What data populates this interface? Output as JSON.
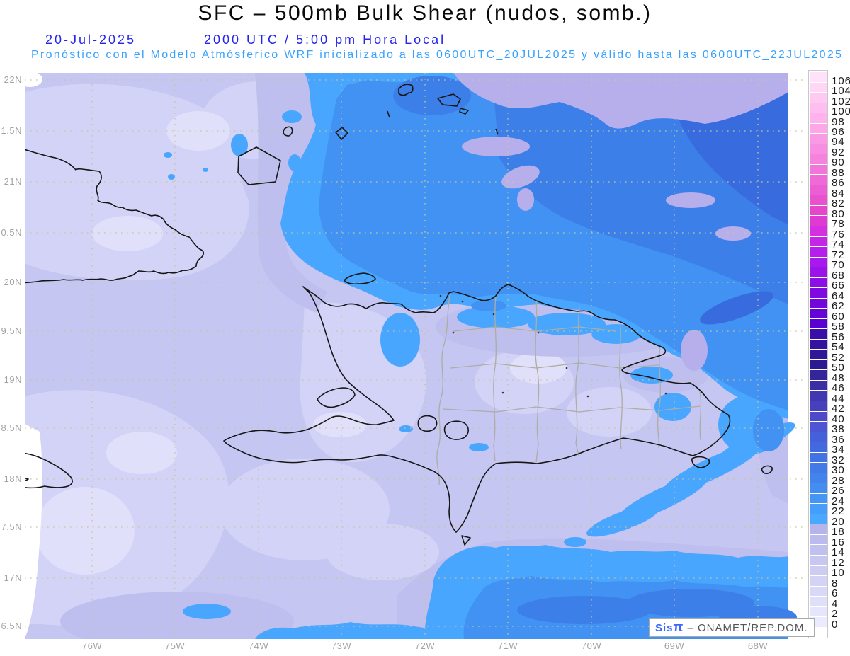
{
  "header": {
    "title": "SFC – 500mb Bulk Shear (nudos, somb.)",
    "date": "20-Jul-2025",
    "time_line": "2000 UTC / 5:00 pm Hora Local",
    "forecast_line": "Pronóstico con el Modelo Atmósferico WRF inicializado a las 0600UTC_20JUL2025 y válido hasta las  0600UTC_22JUL2025"
  },
  "colors": {
    "title": "#0a0a0a",
    "datetime_blue": "#2424EE",
    "forecast_cyan": "#38A1FF",
    "axis_label": "#A3A3A3",
    "grid": "#C6C69C",
    "coastline": "#161616",
    "province": "#ADADA4",
    "colorbar_label": "#1A1A1A",
    "map_base": "#C6C6F2",
    "lav_light": "#D3D3F7",
    "lav_lighter": "#E0E0FA",
    "lav_mid": "#BFBFEF",
    "lav_dark": "#B6AFEC",
    "white_zero": "#FFFFFF",
    "blue_18": "#49A6FE",
    "blue_22": "#4292F3",
    "blue_26": "#3C7FE9",
    "blue_30": "#386CDE",
    "watermark_blue": "#3A66FF",
    "watermark_grey": "#555555"
  },
  "axes": {
    "lat_labels": [
      "22N",
      "1.5N",
      "21N",
      "0.5N",
      "20N",
      "9.5N",
      "19N",
      "8.5N",
      "18N",
      "7.5N",
      "17N",
      "6.5N"
    ],
    "lon_labels": [
      "76W",
      "75W",
      "74W",
      "73W",
      "72W",
      "71W",
      "70W",
      "69W",
      "68W"
    ]
  },
  "colorbar": {
    "unit": "nudos",
    "tick_labels": [
      "106",
      "104",
      "102",
      "100",
      "98",
      "96",
      "94",
      "92",
      "90",
      "88",
      "86",
      "84",
      "82",
      "80",
      "78",
      "76",
      "74",
      "72",
      "70",
      "68",
      "66",
      "64",
      "62",
      "60",
      "58",
      "56",
      "54",
      "52",
      "50",
      "48",
      "46",
      "44",
      "42",
      "40",
      "38",
      "36",
      "34",
      "32",
      "30",
      "28",
      "26",
      "24",
      "22",
      "20",
      "18",
      "16",
      "14",
      "12",
      "10",
      "8",
      "6",
      "4",
      "2",
      "0"
    ],
    "cell_colors": [
      "#FFE2F9",
      "#FFD6F5",
      "#FFCAF2",
      "#FFBEEF",
      "#FFB2EB",
      "#FEA6E8",
      "#FB9AE4",
      "#F88EE1",
      "#F582DD",
      "#F276DA",
      "#EF6AD6",
      "#EC5ED3",
      "#E952CF",
      "#E646CC",
      "#E03AD5",
      "#D430DF",
      "#C526E6",
      "#B61EEC",
      "#A819EE",
      "#9A14EA",
      "#8C0FE5",
      "#7F0AE0",
      "#7206DB",
      "#6503D6",
      "#5801D1",
      "#3A0FA8",
      "#34139F",
      "#2F1797",
      "#2C1B90",
      "#35259A",
      "#3B2EA5",
      "#4137B1",
      "#4740BC",
      "#4D49C8",
      "#4E55D2",
      "#4560DA",
      "#4369DF",
      "#4272E3",
      "#427BE8",
      "#4384EC",
      "#438DF1",
      "#4496F5",
      "#459FFA",
      "#49A9FF",
      "#B5B5EB",
      "#BBBBED",
      "#C1C1EF",
      "#C7C7F1",
      "#CDCDF3",
      "#D3D3F5",
      "#D9D9F7",
      "#DFDFF9",
      "#E5E5FB",
      "#EBEBFD",
      "#FFFFFF"
    ]
  },
  "watermark": {
    "brand": "Sis",
    "symbol": "π",
    "text": "– ONAMET/REP.DOM."
  }
}
